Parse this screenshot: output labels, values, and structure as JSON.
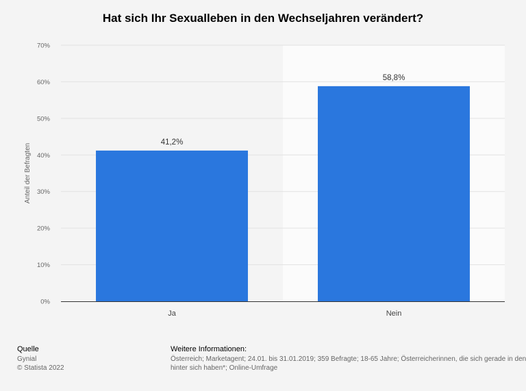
{
  "chart_data": {
    "type": "bar",
    "title": "Hat sich Ihr Sexualleben in den Wechseljahren verändert?",
    "ylabel": "Anteil der Befragten",
    "xlabel": "",
    "categories": [
      "Ja",
      "Nein"
    ],
    "values": [
      41.2,
      58.8
    ],
    "value_labels": [
      "41,2%",
      "58,8%"
    ],
    "ylim": [
      0,
      70
    ],
    "yticks": [
      0,
      10,
      20,
      30,
      40,
      50,
      60,
      70
    ],
    "ytick_labels": [
      "0%",
      "10%",
      "20%",
      "30%",
      "40%",
      "50%",
      "60%",
      "70%"
    ],
    "grid": true,
    "bar_color": "#2a77de"
  },
  "footer": {
    "source_heading": "Quelle",
    "source": "Gynial",
    "copyright": "© Statista 2022",
    "info_heading": "Weitere Informationen:",
    "info_line1": "Österreich; Marketagent; 24.01. bis 31.01.2019; 359 Befragte; 18-65 Jahre; Österreicherinnen, die sich gerade in den Wechseljahren befinden oder diese",
    "info_line2": "hinter sich haben*; Online-Umfrage"
  }
}
